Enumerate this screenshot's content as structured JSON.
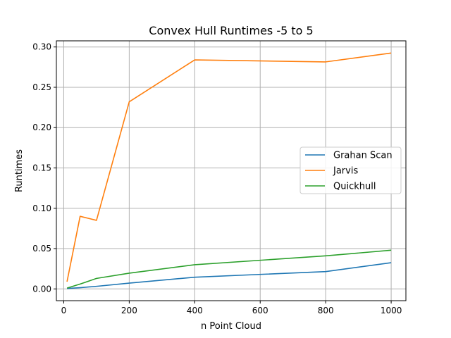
{
  "chart_data": {
    "type": "line",
    "title": "Convex Hull Runtimes -5 to 5",
    "xlabel": "n Point Cloud",
    "ylabel": "Runtimes",
    "xlim": [
      -22.5,
      1045
    ],
    "ylim": [
      -0.0146,
      0.3076
    ],
    "xticks": [
      0,
      200,
      400,
      600,
      800,
      1000
    ],
    "yticks": [
      0.0,
      0.05,
      0.1,
      0.15,
      0.2,
      0.25,
      0.3
    ],
    "xtick_labels": [
      "0",
      "200",
      "400",
      "600",
      "800",
      "1000"
    ],
    "ytick_labels": [
      "0.00",
      "0.05",
      "0.10",
      "0.15",
      "0.20",
      "0.25",
      "0.30"
    ],
    "grid": true,
    "legend_position": "center-right",
    "x": [
      10,
      50,
      100,
      200,
      400,
      800,
      1000
    ],
    "series": [
      {
        "name": "Grahan Scan",
        "color": "#1f77b4",
        "values": [
          0.0005,
          0.0015,
          0.0032,
          0.0072,
          0.0145,
          0.0215,
          0.0325
        ]
      },
      {
        "name": "Jarvis",
        "color": "#ff7f0e",
        "values": [
          0.009,
          0.09,
          0.085,
          0.232,
          0.284,
          0.2815,
          0.2925
        ]
      },
      {
        "name": "Quickhull",
        "color": "#2ca02c",
        "values": [
          0.001,
          0.006,
          0.013,
          0.0195,
          0.03,
          0.041,
          0.048
        ]
      }
    ]
  }
}
